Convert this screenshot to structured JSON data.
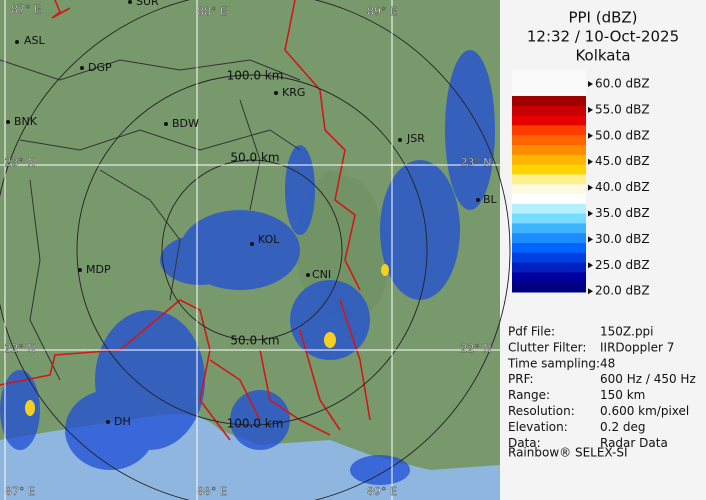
{
  "header": {
    "title": "PPI (dBZ)",
    "time": "12:32 / 10-Oct-2025",
    "station": "Kolkata"
  },
  "legend": {
    "labels": [
      "60.0 dBZ",
      "55.0 dBZ",
      "50.0 dBZ",
      "45.0 dBZ",
      "40.0 dBZ",
      "35.0 dBZ",
      "30.0 dBZ",
      "25.0 dBZ",
      "20.0 dBZ"
    ],
    "colors": [
      "#a00000",
      "#c80000",
      "#e60000",
      "#ff3c00",
      "#ff6400",
      "#ff8c00",
      "#ffb400",
      "#ffd200",
      "#fff08c",
      "#fffbe0",
      "#ffffff",
      "#b4f0ff",
      "#78dcff",
      "#3cb4ff",
      "#1e8cff",
      "#0064ff",
      "#0040e0",
      "#0020c0",
      "#0000a0",
      "#000080"
    ]
  },
  "info": {
    "rows": [
      [
        "Pdf File:",
        "150Z.ppi"
      ],
      [
        "Clutter Filter:",
        "IIRDoppler 7"
      ],
      [
        "Time sampling:",
        "48"
      ],
      [
        "PRF:",
        "600 Hz / 450 Hz"
      ],
      [
        "Range:",
        "150 km"
      ],
      [
        "Resolution:",
        "0.600 km/pixel"
      ],
      [
        "Elevation:",
        "0.2 deg"
      ],
      [
        "Data:",
        "Radar Data"
      ]
    ],
    "footer": "Rainbow® SELEX-SI"
  },
  "map": {
    "grid_labels": [
      "87° E",
      "88° E",
      "89° E",
      "88° E",
      "89° E",
      "87° E",
      "23° N",
      "23° N",
      "22° N",
      "22° N"
    ],
    "cities": [
      "SUR",
      "ASL",
      "DGP",
      "BNK",
      "BDW",
      "KRG",
      "JSR",
      "MDP",
      "KOL",
      "CNI",
      "BL",
      "DH"
    ],
    "range_labels": [
      "100.0 km",
      "50.0 km",
      "50.0 km",
      "100.0 km"
    ]
  }
}
